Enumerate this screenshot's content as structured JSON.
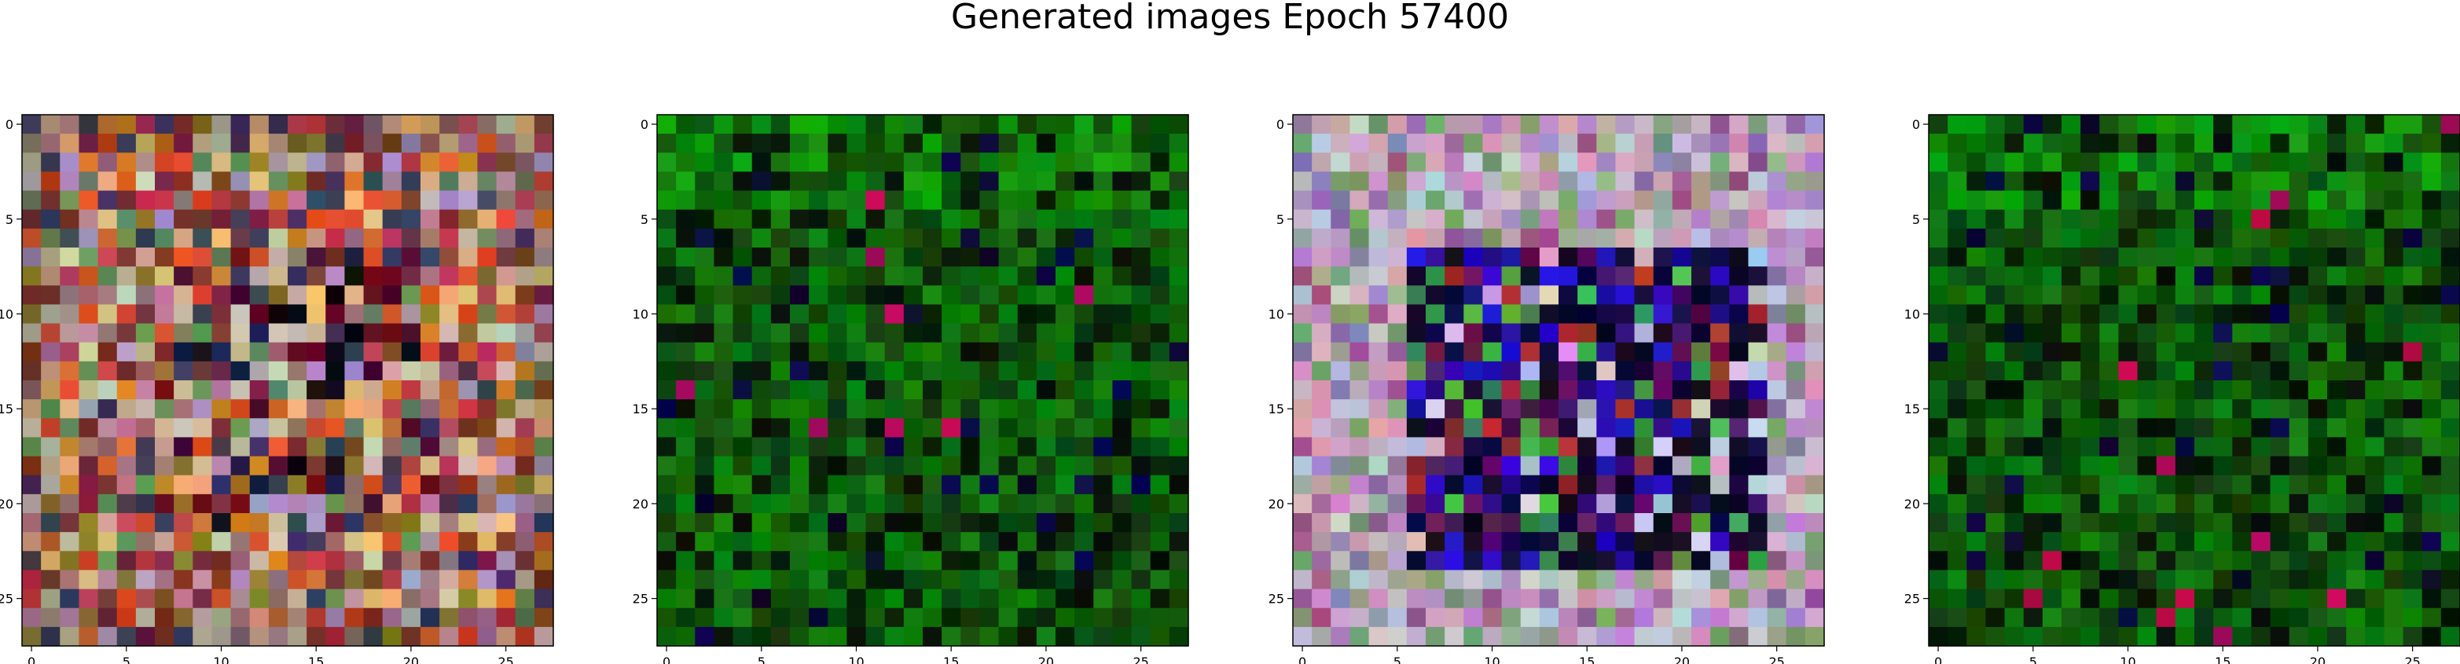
{
  "figure": {
    "title": "Generated images Epoch 57400"
  },
  "chart_data": [
    {
      "type": "heatmap",
      "panel": 1,
      "dominant_palette": "multicolor",
      "xlim": [
        0,
        27
      ],
      "ylim": [
        27,
        0
      ],
      "x_ticks": [
        0,
        5,
        10,
        15,
        20,
        25
      ],
      "y_ticks": [
        0,
        5,
        10,
        15,
        20,
        25
      ],
      "grid": false,
      "image_size": 28
    },
    {
      "type": "heatmap",
      "panel": 2,
      "dominant_palette": "green",
      "xlim": [
        0,
        27
      ],
      "ylim": [
        27,
        0
      ],
      "x_ticks": [
        0,
        5,
        10,
        15,
        20,
        25
      ],
      "y_ticks": [
        0,
        5,
        10,
        15,
        20,
        25
      ],
      "grid": false,
      "image_size": 28
    },
    {
      "type": "heatmap",
      "panel": 3,
      "dominant_palette": "multicolor-with-blue-dark-center",
      "xlim": [
        0,
        27
      ],
      "ylim": [
        27,
        0
      ],
      "x_ticks": [
        0,
        5,
        10,
        15,
        20,
        25
      ],
      "y_ticks": [
        0,
        5,
        10,
        15,
        20,
        25
      ],
      "grid": false,
      "image_size": 28
    },
    {
      "type": "heatmap",
      "panel": 4,
      "dominant_palette": "green",
      "xlim": [
        0,
        27
      ],
      "ylim": [
        27,
        0
      ],
      "x_ticks": [
        0,
        5,
        10,
        15,
        20,
        25
      ],
      "y_ticks": [
        0,
        5,
        10,
        15,
        20,
        25
      ],
      "grid": false,
      "image_size": 28
    }
  ],
  "colors": {
    "background": "#ffffff",
    "axis": "#000000"
  }
}
